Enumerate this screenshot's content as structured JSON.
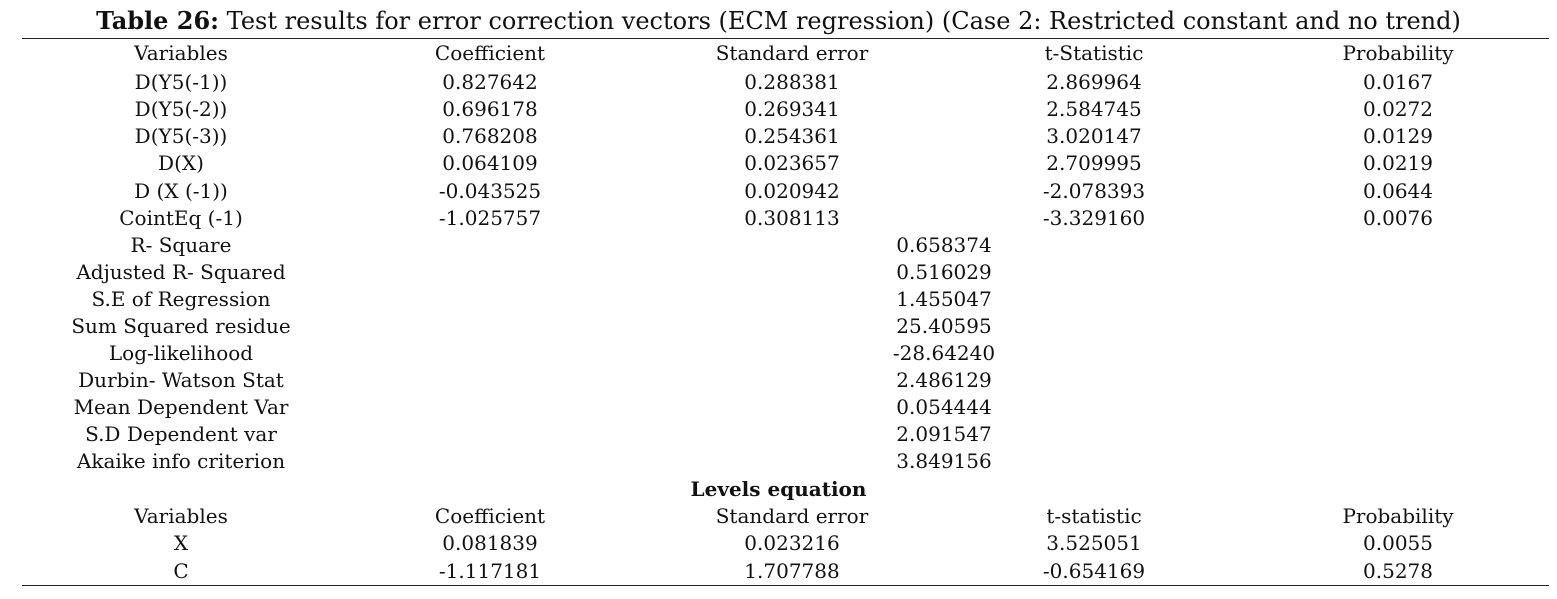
{
  "caption": {
    "label": "Table 26:",
    "text": " Test results for error correction vectors (ECM regression) (Case 2: Restricted constant and no trend)"
  },
  "ecm": {
    "headers": [
      "Variables",
      "Coefficient",
      "Standard error",
      "t-Statistic",
      "Probability"
    ],
    "rows": [
      [
        "D(Y5(-1))",
        "0.827642",
        "0.288381",
        "2.869964",
        "0.0167"
      ],
      [
        "D(Y5(-2))",
        "0.696178",
        "0.269341",
        "2.584745",
        "0.0272"
      ],
      [
        "D(Y5(-3))",
        "0.768208",
        "0.254361",
        "3.020147",
        "0.0129"
      ],
      [
        "D(X)",
        "0.064109",
        "0.023657",
        "2.709995",
        "0.0219"
      ],
      [
        "D (X (-1))",
        "-0.043525",
        "0.020942",
        "-2.078393",
        "0.0644"
      ],
      [
        "CointEq (-1)",
        "-1.025757",
        "0.308113",
        "-3.329160",
        "0.0076"
      ]
    ]
  },
  "stats": [
    {
      "label": "R- Square",
      "value": "0.658374"
    },
    {
      "label": "Adjusted R- Squared",
      "value": "0.516029"
    },
    {
      "label": "S.E of Regression",
      "value": "1.455047"
    },
    {
      "label": "Sum Squared residue",
      "value": "25.40595"
    },
    {
      "label": "Log-likelihood",
      "value": "-28.64240"
    },
    {
      "label": "Durbin- Watson Stat",
      "value": "2.486129"
    },
    {
      "label": "Mean Dependent Var",
      "value": "0.054444"
    },
    {
      "label": "S.D Dependent var",
      "value": "2.091547"
    },
    {
      "label": "Akaike info criterion",
      "value": "3.849156"
    }
  ],
  "levels": {
    "title": "Levels equation",
    "headers": [
      "Variables",
      "Coefficient",
      "Standard error",
      "t-statistic",
      "Probability"
    ],
    "rows": [
      [
        "X",
        "0.081839",
        "0.023216",
        "3.525051",
        "0.0055"
      ],
      [
        "C",
        "-1.117181",
        "1.707788",
        "-0.654169",
        "0.5278"
      ]
    ]
  }
}
